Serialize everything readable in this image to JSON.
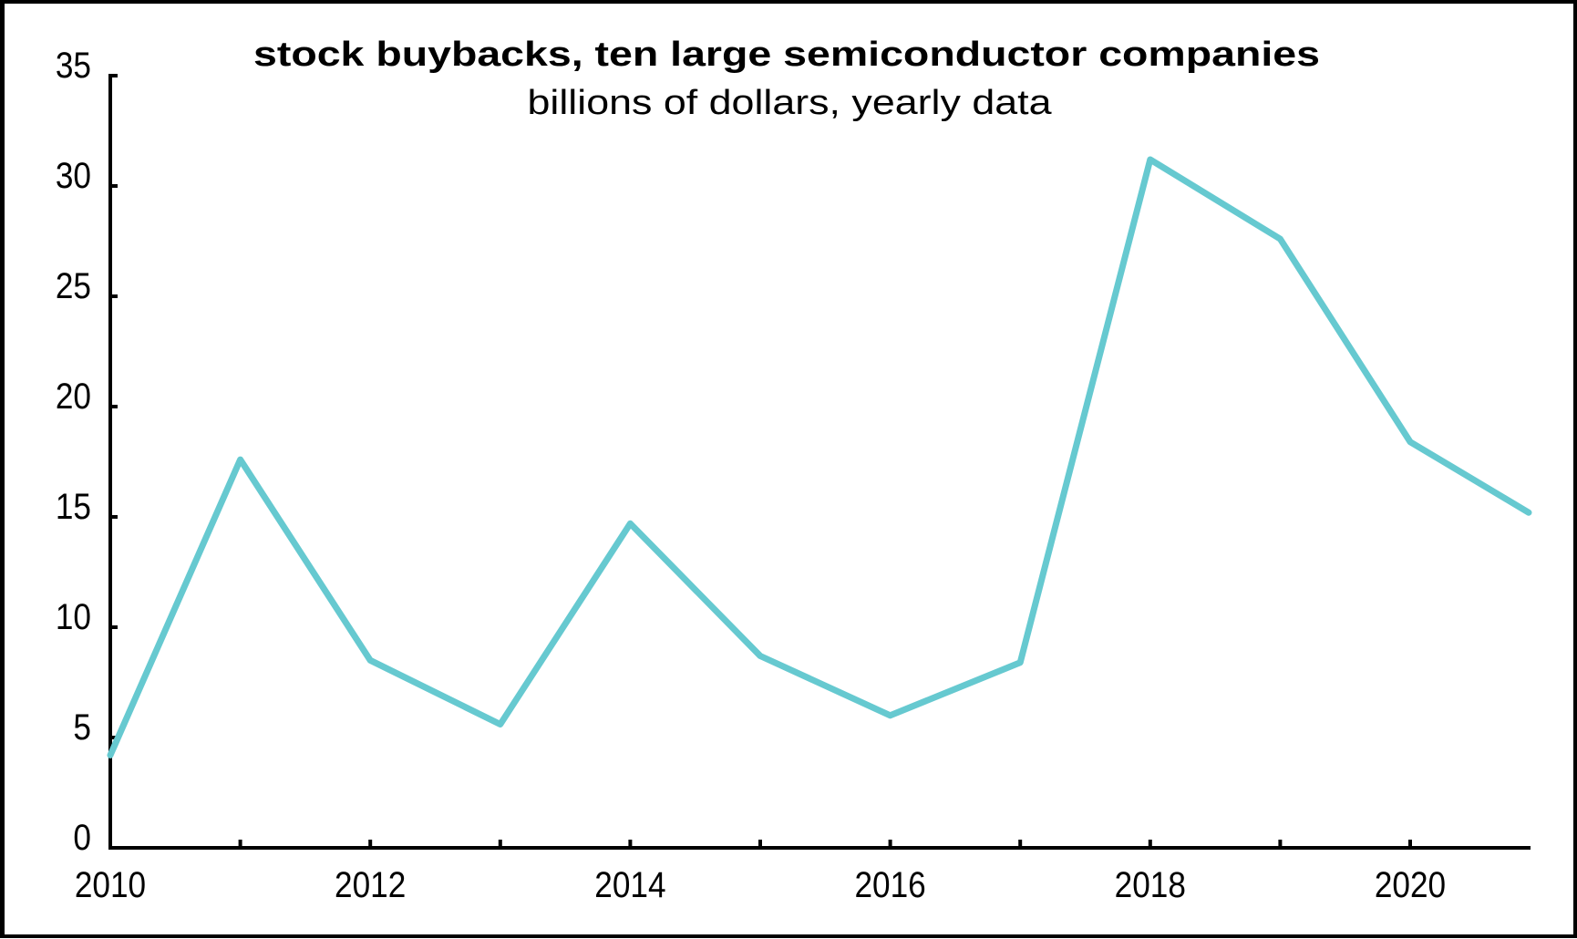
{
  "chart": {
    "title": "stock buybacks, ten large semiconductor companies",
    "subtitle": "billions of dollars, yearly data"
  },
  "colors": {
    "series": "#66C9D0",
    "axis": "#000000",
    "border": "#000000",
    "background": "#FFFFFF"
  },
  "chart_data": {
    "type": "line",
    "title": "stock buybacks, ten large semiconductor companies",
    "subtitle": "billions of dollars, yearly data",
    "xlabel": "",
    "ylabel": "billions of dollars",
    "x": [
      2010,
      2011,
      2012,
      2013,
      2014,
      2015,
      2016,
      2017,
      2018,
      2019,
      2020,
      2021
    ],
    "series": [
      {
        "name": "stock buybacks",
        "color": "#66C9D0",
        "values": [
          4.2,
          17.6,
          8.5,
          5.6,
          14.7,
          8.7,
          6.0,
          8.4,
          31.2,
          27.6,
          18.4,
          15.2
        ]
      }
    ],
    "xticks": [
      2010,
      2011,
      2012,
      2013,
      2014,
      2015,
      2016,
      2017,
      2018,
      2019,
      2020
    ],
    "xtick_labels": [
      "2010",
      "2012",
      "2014",
      "2016",
      "2018",
      "2020"
    ],
    "yticks": [
      0,
      5,
      10,
      15,
      20,
      25,
      30,
      35
    ],
    "ytick_labels": [
      "0",
      "5",
      "10",
      "15",
      "20",
      "25",
      "30",
      "35"
    ],
    "ylim": [
      0,
      35
    ],
    "xlim": [
      2010,
      2020.92
    ],
    "grid": false,
    "legend": "none"
  }
}
